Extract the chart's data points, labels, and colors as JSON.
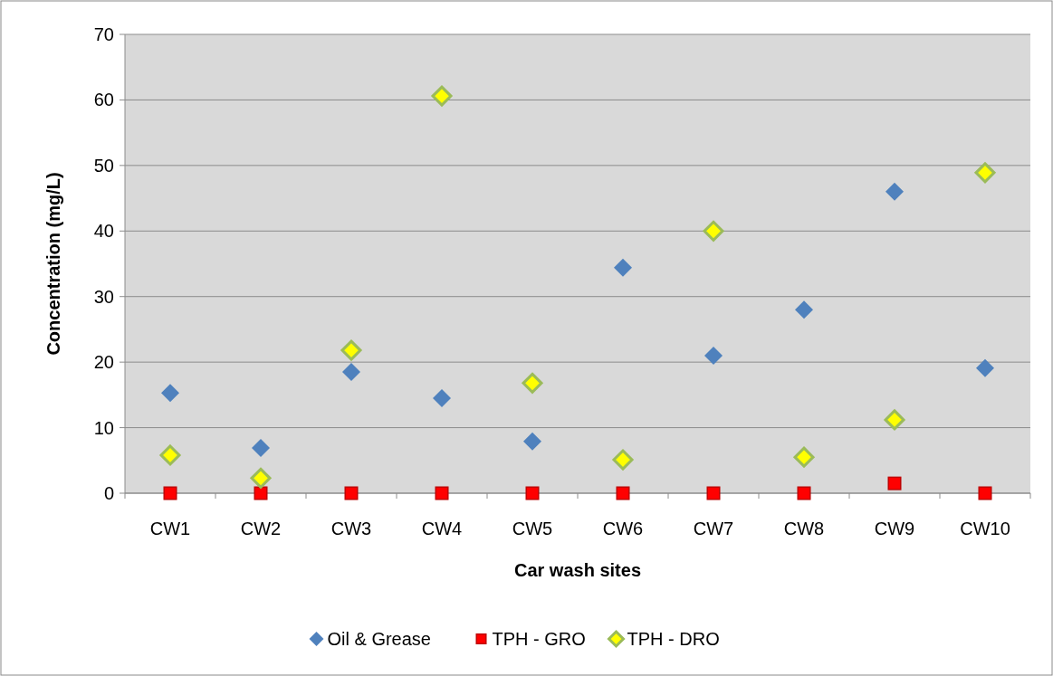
{
  "chart_data": {
    "type": "scatter",
    "xlabel": "Car wash sites",
    "ylabel": "Concentration (mg/L)",
    "categories": [
      "CW1",
      "CW2",
      "CW3",
      "CW4",
      "CW5",
      "CW6",
      "CW7",
      "CW8",
      "CW9",
      "CW10"
    ],
    "series": [
      {
        "name": "Oil & Grease",
        "color": "#4f81bd",
        "marker": "diamond",
        "values": [
          15.3,
          6.9,
          18.5,
          14.5,
          7.9,
          34.4,
          21.0,
          28.0,
          46.0,
          19.1
        ]
      },
      {
        "name": "TPH - GRO",
        "color": "#ff0000",
        "marker": "square",
        "values": [
          0,
          0,
          0,
          0,
          0,
          0,
          0,
          0,
          1.5,
          0
        ]
      },
      {
        "name": "TPH - DRO",
        "color": "#ffff00",
        "marker": "diamond",
        "values": [
          5.8,
          2.3,
          21.8,
          60.6,
          16.8,
          5.1,
          40.0,
          5.5,
          11.2,
          48.9
        ]
      }
    ],
    "ylim": [
      0,
      70
    ],
    "yticks": [
      0,
      10,
      20,
      30,
      40,
      50,
      60,
      70
    ],
    "grid": "y",
    "legend": "bottom"
  }
}
